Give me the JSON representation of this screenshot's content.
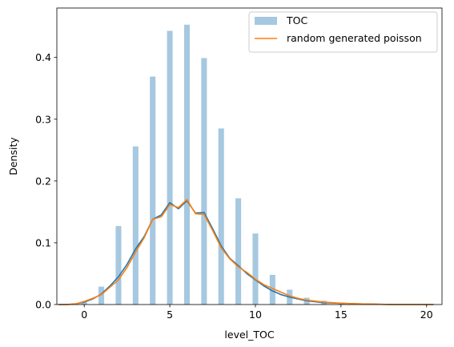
{
  "chart_data": {
    "type": "bar",
    "xlabel": "level_TOC",
    "ylabel": "Density",
    "xlim": [
      -1.6,
      20.9
    ],
    "ylim": [
      0,
      0.48
    ],
    "x_ticks": [
      0,
      5,
      10,
      15,
      20
    ],
    "y_ticks": [
      0.0,
      0.1,
      0.2,
      0.3,
      0.4
    ],
    "y_tick_labels": [
      "0.0",
      "0.1",
      "0.2",
      "0.3",
      "0.4"
    ],
    "grid": false,
    "legend_position": "top-right",
    "histogram": {
      "name": "TOC",
      "color": "#a6c8e0",
      "bin_width": 0.33,
      "bins": [
        {
          "x": 0,
          "density": 0.005
        },
        {
          "x": 1,
          "density": 0.029
        },
        {
          "x": 2,
          "density": 0.127
        },
        {
          "x": 3,
          "density": 0.256
        },
        {
          "x": 4,
          "density": 0.369
        },
        {
          "x": 5,
          "density": 0.443
        },
        {
          "x": 6,
          "density": 0.453
        },
        {
          "x": 7,
          "density": 0.399
        },
        {
          "x": 8,
          "density": 0.285
        },
        {
          "x": 9,
          "density": 0.172
        },
        {
          "x": 10,
          "density": 0.115
        },
        {
          "x": 11,
          "density": 0.048
        },
        {
          "x": 12,
          "density": 0.024
        },
        {
          "x": 13,
          "density": 0.011
        },
        {
          "x": 14,
          "density": 0.006
        },
        {
          "x": 15,
          "density": 0.003
        },
        {
          "x": 16,
          "density": 0.001
        }
      ]
    },
    "series": [
      {
        "color": "#1f77b4",
        "x": [
          -1.5,
          -1,
          -0.5,
          0,
          0.5,
          1,
          1.5,
          2,
          2.5,
          3,
          3.5,
          4,
          4.5,
          5,
          5.5,
          6,
          6.5,
          7,
          7.5,
          8,
          8.5,
          9,
          9.5,
          10,
          10.5,
          11,
          11.5,
          12,
          12.5,
          13,
          14,
          15,
          16,
          17,
          18,
          19,
          20,
          20.4
        ],
        "y": [
          0.0,
          0.0,
          0.001,
          0.004,
          0.009,
          0.017,
          0.03,
          0.045,
          0.065,
          0.09,
          0.11,
          0.138,
          0.145,
          0.165,
          0.155,
          0.168,
          0.148,
          0.149,
          0.123,
          0.095,
          0.075,
          0.063,
          0.05,
          0.04,
          0.03,
          0.022,
          0.016,
          0.012,
          0.009,
          0.006,
          0.003,
          0.002,
          0.001,
          0.0005,
          0.0,
          0.0,
          0.0,
          0.0
        ]
      },
      {
        "name": "random generated poisson",
        "color": "#ff7f0e",
        "x": [
          -1.5,
          -1,
          -0.5,
          0,
          0.5,
          1,
          1.5,
          2,
          2.5,
          3,
          3.5,
          4,
          4.5,
          5,
          5.5,
          6,
          6.5,
          7,
          7.5,
          8,
          8.5,
          9,
          9.5,
          10,
          10.5,
          11,
          11.5,
          12,
          12.5,
          13,
          14,
          15,
          16,
          17,
          18,
          19,
          20,
          20.4
        ],
        "y": [
          0.0,
          0.0,
          0.001,
          0.005,
          0.01,
          0.016,
          0.028,
          0.04,
          0.06,
          0.085,
          0.108,
          0.138,
          0.142,
          0.162,
          0.157,
          0.17,
          0.147,
          0.146,
          0.12,
          0.092,
          0.074,
          0.061,
          0.052,
          0.041,
          0.032,
          0.026,
          0.02,
          0.014,
          0.01,
          0.007,
          0.004,
          0.002,
          0.001,
          0.0005,
          0.0,
          0.0,
          0.0,
          0.0
        ]
      }
    ],
    "legend": {
      "entries": [
        {
          "label": "TOC",
          "kind": "patch",
          "color": "#a6c8e0"
        },
        {
          "label": "random generated poisson",
          "kind": "line",
          "color": "#ff7f0e"
        }
      ]
    }
  }
}
